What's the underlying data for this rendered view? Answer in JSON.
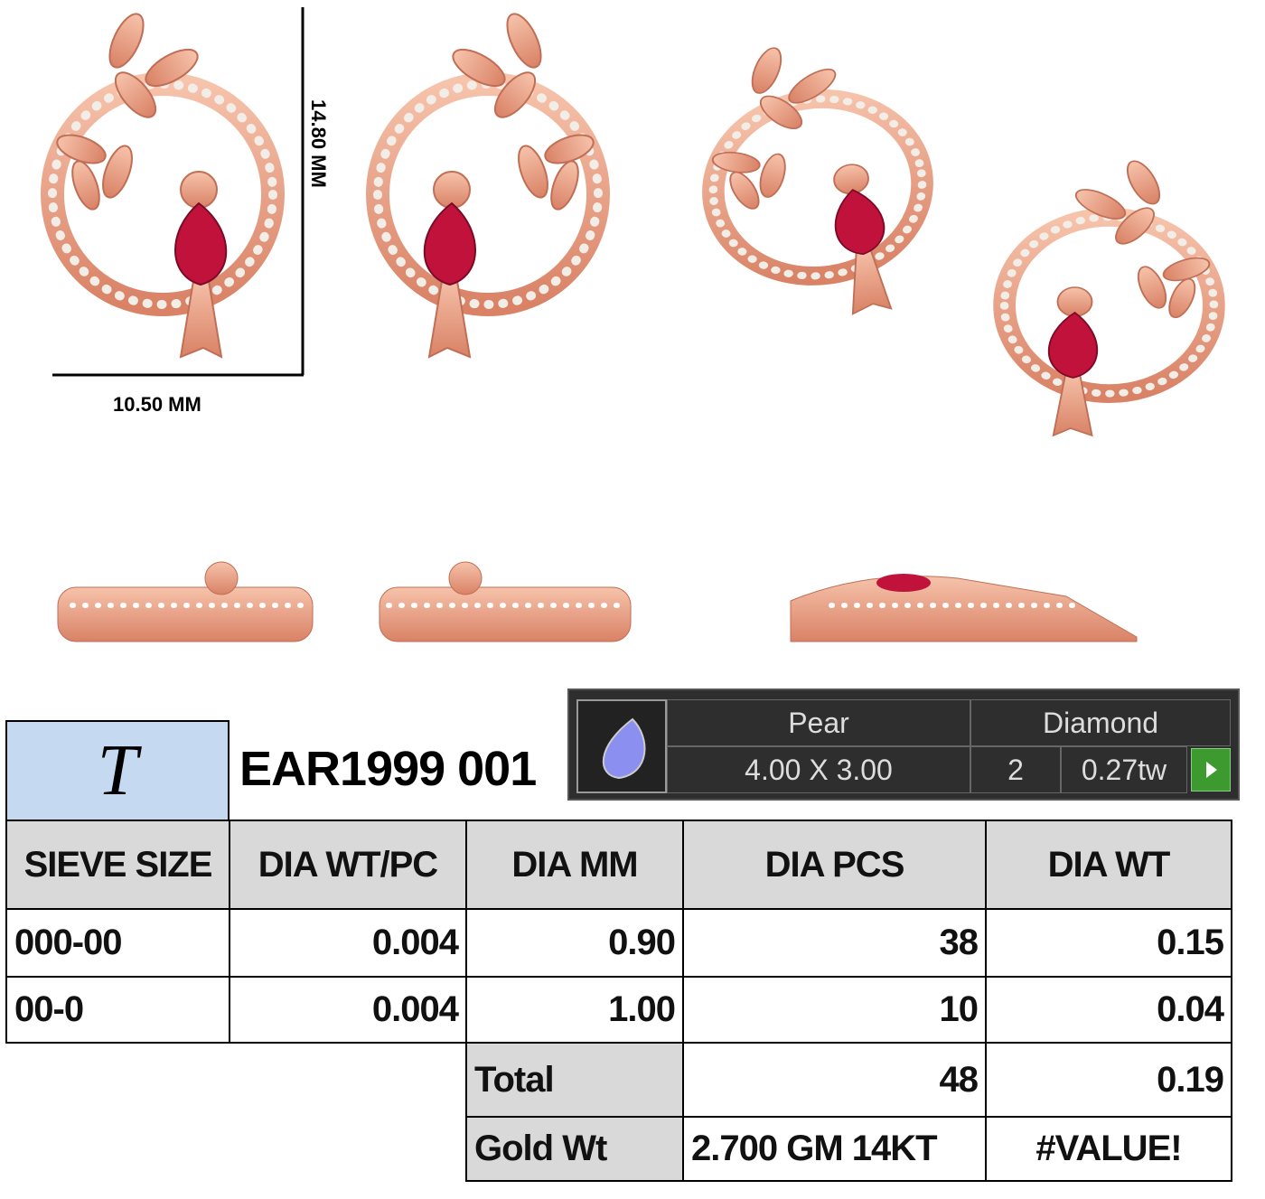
{
  "dimensions": {
    "height": "14.80 MM",
    "width": "10.50 MM"
  },
  "logo": "T",
  "product_code": "EAR1999 001",
  "stone_panel": {
    "shape": "Pear",
    "stone": "Diamond",
    "size": "4.00 X 3.00",
    "count": "2",
    "weight": "0.27tw"
  },
  "table": {
    "headers": [
      "SIEVE SIZE",
      "DIA WT/PC",
      "DIA MM",
      "DIA PCS",
      "DIA WT"
    ],
    "rows": [
      [
        "000-00",
        "0.004",
        "0.90",
        "38",
        "0.15"
      ],
      [
        "00-0",
        "0.004",
        "1.00",
        "10",
        "0.04"
      ]
    ],
    "total": {
      "label": "Total",
      "pcs": "48",
      "wt": "0.19"
    },
    "gold": {
      "label": "Gold Wt",
      "value": "2.700 GM 14KT",
      "wt": "#VALUE!"
    }
  }
}
